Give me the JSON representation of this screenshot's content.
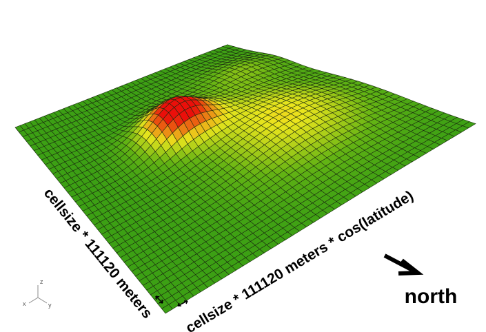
{
  "labels": {
    "left_edge": "cellsize * 111120 meters",
    "right_edge": "cellsize * 111120 meters * cos(latitude)",
    "direction": "north",
    "axes": {
      "x": "x",
      "y": "y",
      "z": "z"
    }
  }
}
